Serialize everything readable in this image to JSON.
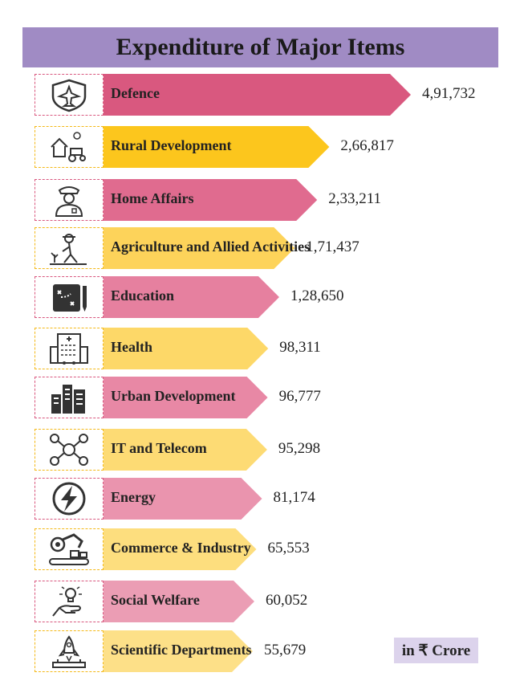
{
  "chart_data": {
    "type": "bar",
    "title": "Expenditure of Major Items",
    "unit_label": "in ₹ Crore",
    "categories": [
      "Defence",
      "Rural Development",
      "Home Affairs",
      "Agriculture and Allied Activities",
      "Education",
      "Health",
      "Urban Development",
      "IT and Telecom",
      "Energy",
      "Commerce & Industry",
      "Social Welfare",
      "Scientific Departments"
    ],
    "values": [
      491732,
      266817,
      233211,
      171437,
      128650,
      98311,
      96777,
      95298,
      81174,
      65553,
      60052,
      55679
    ],
    "value_labels": [
      "4,91,732",
      "2,66,817",
      "2,33,211",
      "1,71,437",
      "1,28,650",
      "98,311",
      "96,777",
      "95,298",
      "81,174",
      "65,553",
      "60,052",
      "55,679"
    ],
    "icons": [
      "fighter-jet-shield-icon",
      "farm-tractor-icon",
      "police-officer-icon",
      "farmer-planting-icon",
      "education-board-icon",
      "hospital-building-icon",
      "city-buildings-icon",
      "network-people-icon",
      "lightning-bolt-icon",
      "factory-robot-arm-icon",
      "hand-lightbulb-icon",
      "rocket-launch-icon"
    ],
    "colors": [
      "#d9587f",
      "#fcc61d",
      "#e06b8f",
      "#fdd35a",
      "#e6809f",
      "#fdd868",
      "#e888a5",
      "#fddb74",
      "#ea94ae",
      "#fdde7e",
      "#eb9db4",
      "#fde088"
    ],
    "border_colors": [
      "#d9587f",
      "#f4b918",
      "#d9587f",
      "#f4b918",
      "#d9587f",
      "#f4b918",
      "#d9587f",
      "#f4b918",
      "#d9587f",
      "#f4b918",
      "#d9587f",
      "#f4b918"
    ]
  }
}
